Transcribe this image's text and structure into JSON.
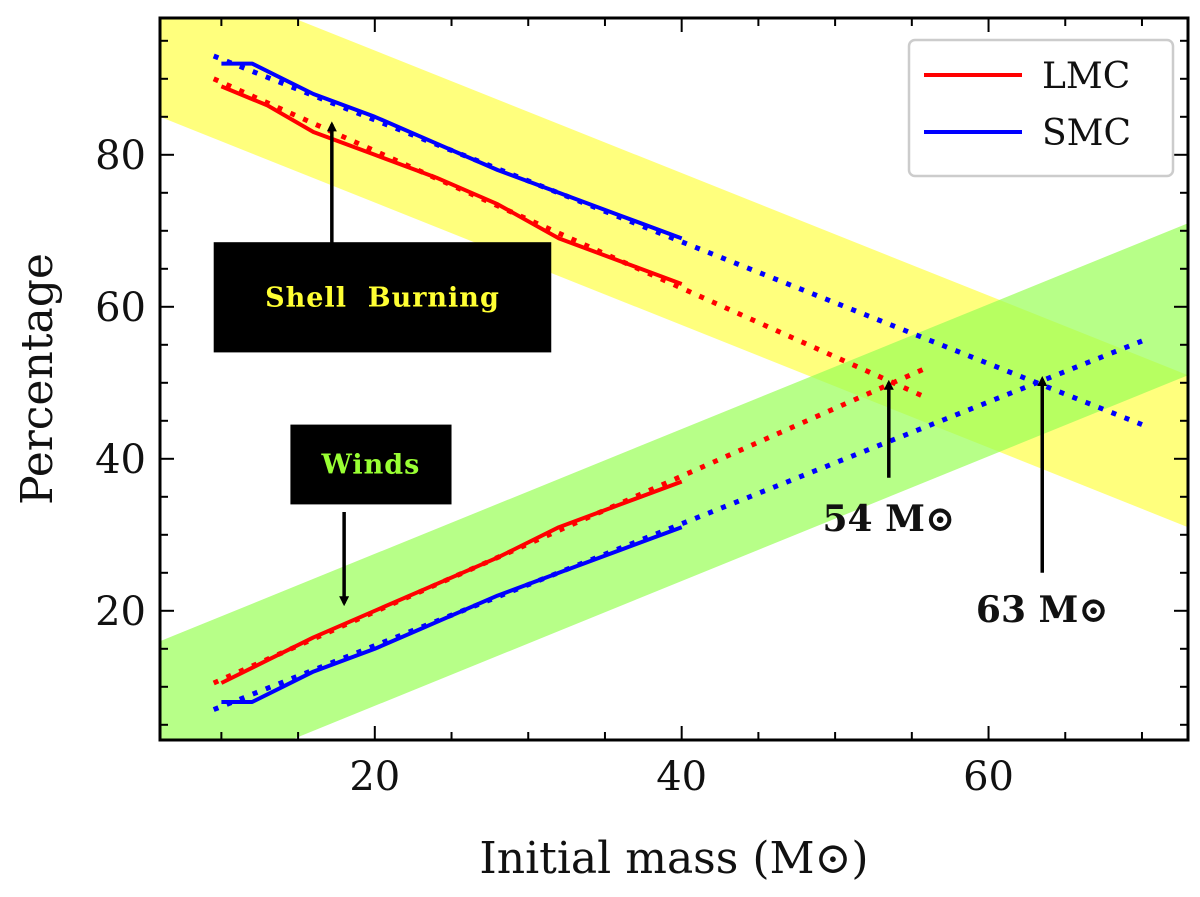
{
  "chart_data": {
    "type": "line",
    "title": "",
    "xlabel": "Initial mass (M⊙)",
    "ylabel": "Percentage",
    "xlim": [
      6,
      73
    ],
    "ylim": [
      3,
      98
    ],
    "xticks": [
      20,
      40,
      60
    ],
    "yticks": [
      20,
      40,
      60,
      80
    ],
    "x_minor_step": 5,
    "y_minor_step": 5,
    "grid": false,
    "legend": {
      "position": "top-right",
      "entries": [
        {
          "name": "LMC",
          "color": "#ff0000"
        },
        {
          "name": "SMC",
          "color": "#0000ff"
        }
      ]
    },
    "bands": [
      {
        "name": "shell-burning-band",
        "color": "#ffff66",
        "opacity": 0.85,
        "center_start": [
          6,
          95
        ],
        "center_end": [
          73,
          41
        ],
        "half_width": 10
      },
      {
        "name": "winds-band",
        "color": "#99ff55",
        "opacity": 0.7,
        "center_start": [
          6,
          6
        ],
        "center_end": [
          73,
          61
        ],
        "half_width": 10
      }
    ],
    "series": [
      {
        "name": "LMC shell burning (model)",
        "color": "#ff0000",
        "style": "solid",
        "x": [
          10,
          13,
          16,
          20,
          24,
          28,
          32,
          36,
          40
        ],
        "y": [
          89,
          86.5,
          83,
          80,
          77,
          73.5,
          69,
          66,
          63
        ]
      },
      {
        "name": "LMC shell burning (fit)",
        "color": "#ff0000",
        "style": "dotted",
        "x": [
          9.5,
          56
        ],
        "y": [
          90,
          48
        ]
      },
      {
        "name": "LMC winds (model)",
        "color": "#ff0000",
        "style": "solid",
        "x": [
          10,
          13,
          16,
          20,
          24,
          28,
          32,
          36,
          40
        ],
        "y": [
          10.5,
          13.5,
          16.5,
          20,
          23.5,
          27,
          31,
          34,
          37
        ]
      },
      {
        "name": "LMC winds (fit)",
        "color": "#ff0000",
        "style": "dotted",
        "x": [
          9.5,
          56
        ],
        "y": [
          10.5,
          52
        ]
      },
      {
        "name": "SMC shell burning (model)",
        "color": "#0000ff",
        "style": "solid",
        "x": [
          10,
          12,
          14,
          16,
          20,
          24,
          28,
          32,
          36,
          40
        ],
        "y": [
          92,
          92,
          90,
          88,
          85,
          81.5,
          78,
          75,
          72,
          69
        ]
      },
      {
        "name": "SMC shell burning (fit)",
        "color": "#0000ff",
        "style": "dotted",
        "x": [
          9.5,
          70
        ],
        "y": [
          93,
          44.5
        ]
      },
      {
        "name": "SMC winds (model)",
        "color": "#0000ff",
        "style": "solid",
        "x": [
          10,
          12,
          14,
          16,
          20,
          24,
          28,
          32,
          36,
          40
        ],
        "y": [
          8,
          8,
          10,
          12,
          15,
          18.5,
          22,
          25,
          28,
          31
        ]
      },
      {
        "name": "SMC winds (fit)",
        "color": "#0000ff",
        "style": "dotted",
        "x": [
          9.5,
          70
        ],
        "y": [
          7,
          55.5
        ]
      }
    ],
    "annotations": [
      {
        "name": "shell-burning-label",
        "text": "Shell  Burning",
        "text_color": "#ffff33",
        "box_x": [
          9.5,
          31.5
        ],
        "box_y": [
          54,
          68.5
        ],
        "arrow_from": [
          17.2,
          65
        ],
        "arrow_to": [
          17.2,
          84
        ]
      },
      {
        "name": "winds-label",
        "text": "Winds",
        "text_color": "#99ff33",
        "box_x": [
          14.5,
          25
        ],
        "box_y": [
          34,
          44.5
        ],
        "arrow_from": [
          18,
          33
        ],
        "arrow_to": [
          18,
          21
        ]
      },
      {
        "name": "lmc-crossing-label",
        "text": "54 M⊙",
        "text_at": [
          53.5,
          30.5
        ],
        "arrow_from": [
          53.5,
          37.5
        ],
        "arrow_to": [
          53.5,
          50
        ]
      },
      {
        "name": "smc-crossing-label",
        "text": "63 M⊙",
        "text_at": [
          63.5,
          18.5
        ],
        "arrow_from": [
          63.5,
          25
        ],
        "arrow_to": [
          63.5,
          50.5
        ]
      }
    ]
  }
}
